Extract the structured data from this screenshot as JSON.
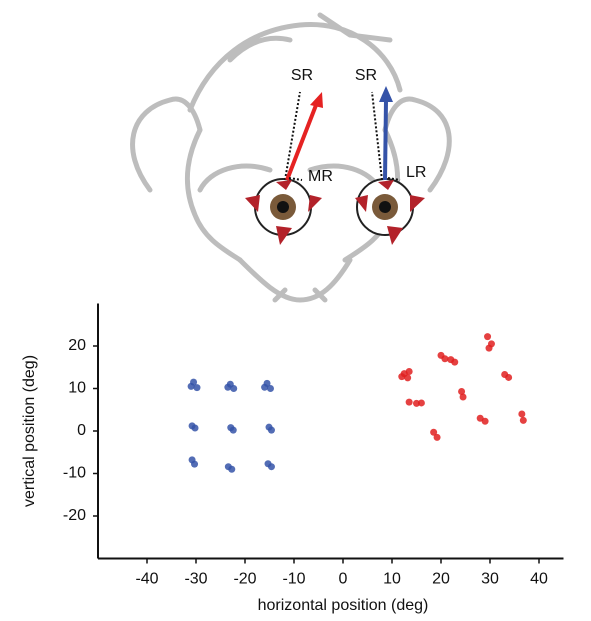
{
  "chart_data": {
    "type": "scatter",
    "annotations": [
      "SR",
      "MR",
      "SR",
      "LR"
    ],
    "xlabel": "horizontal position (deg)",
    "ylabel": "vertical position (deg)",
    "xlim": [
      -50,
      45
    ],
    "xticks": [
      -40,
      -30,
      -20,
      -10,
      0,
      10,
      20,
      30,
      40
    ],
    "ylim": [
      -30,
      30
    ],
    "yticks": [
      -20,
      -10,
      0,
      10,
      20
    ],
    "series": [
      {
        "color": "#3553a8",
        "x": [
          -30.5,
          -29.8,
          -31,
          -23,
          -22.3,
          -23.5,
          -15.5,
          -14.8,
          -16,
          -30.8,
          -30.2,
          -22.9,
          -22.4,
          -15.1,
          -14.6,
          -30.8,
          -30.3,
          -23.4,
          -22.7,
          -15.3,
          -14.6
        ],
        "y": [
          11.5,
          10.2,
          10.5,
          11,
          10,
          10.3,
          11.2,
          10,
          10.3,
          1.2,
          0.7,
          0.8,
          0.2,
          0.9,
          0.2,
          -6.8,
          -7.8,
          -8.4,
          -9,
          -7.7,
          -8.4
        ]
      },
      {
        "color": "#e02020",
        "x": [
          12.5,
          13.2,
          12,
          13.5,
          20,
          20.8,
          22,
          22.8,
          29.5,
          30.3,
          29.8,
          33,
          33.8,
          24.2,
          24.5,
          13.5,
          15,
          16,
          18.5,
          19.2,
          28,
          29,
          36.5,
          36.8
        ],
        "y": [
          13.5,
          12.5,
          12.8,
          14,
          17.8,
          17,
          16.8,
          16.2,
          22.2,
          20.5,
          19.5,
          13.3,
          12.6,
          9.3,
          8,
          6.8,
          6.5,
          6.6,
          -0.3,
          -1.5,
          3,
          2.3,
          4,
          2.5
        ]
      }
    ]
  }
}
